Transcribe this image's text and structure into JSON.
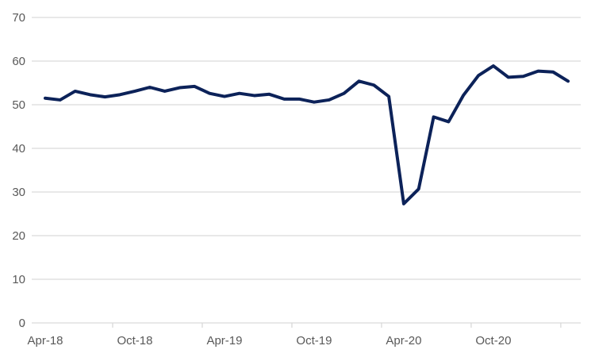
{
  "chart_data": {
    "type": "line",
    "title": "",
    "xlabel": "",
    "ylabel": "",
    "ylim": [
      0,
      70
    ],
    "yticks": [
      0,
      10,
      20,
      30,
      40,
      50,
      60,
      70
    ],
    "grid": "horizontal",
    "legend": "none",
    "x_tick_labels": [
      "Apr-18",
      "Oct-18",
      "Apr-19",
      "Oct-19",
      "Apr-20",
      "Oct-20"
    ],
    "x": [
      "Apr-18",
      "May-18",
      "Jun-18",
      "Jul-18",
      "Aug-18",
      "Sep-18",
      "Oct-18",
      "Nov-18",
      "Dec-18",
      "Jan-19",
      "Feb-19",
      "Mar-19",
      "Apr-19",
      "May-19",
      "Jun-19",
      "Jul-19",
      "Aug-19",
      "Sep-19",
      "Oct-19",
      "Nov-19",
      "Dec-19",
      "Jan-20",
      "Feb-20",
      "Mar-20",
      "Apr-20",
      "May-20",
      "Jun-20",
      "Jul-20",
      "Aug-20",
      "Sep-20",
      "Oct-20",
      "Nov-20",
      "Dec-20",
      "Jan-21",
      "Feb-21",
      "Mar-21"
    ],
    "series": [
      {
        "color": "#0c2259",
        "values": [
          51.5,
          51.1,
          53.1,
          52.3,
          51.8,
          52.3,
          53.1,
          54.0,
          53.1,
          53.9,
          54.2,
          52.6,
          51.9,
          52.6,
          52.1,
          52.4,
          51.3,
          51.3,
          50.6,
          51.1,
          52.6,
          55.4,
          54.5,
          51.9,
          27.3,
          30.7,
          47.2,
          46.1,
          52.2,
          56.7,
          58.9,
          56.3,
          56.5,
          57.7,
          57.5,
          55.4
        ]
      }
    ]
  }
}
